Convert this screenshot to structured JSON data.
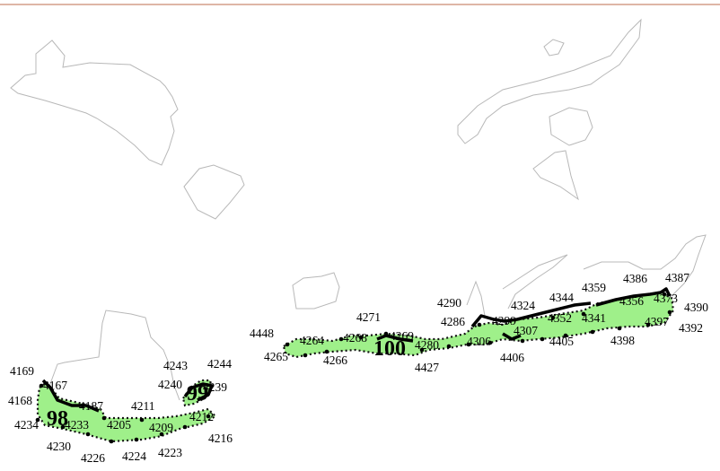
{
  "map": {
    "frame_line_color": "#c98a70",
    "fill_color": "#9ff08a",
    "areas": [
      {
        "id": "98",
        "label": "98"
      },
      {
        "id": "99",
        "label": "99"
      },
      {
        "id": "100",
        "label": "100"
      }
    ],
    "point_labels": [
      "4169",
      "4167",
      "4168",
      "4187",
      "4211",
      "4234",
      "4233",
      "4205",
      "4209",
      "4212",
      "4216",
      "4230",
      "4226",
      "4224",
      "4223",
      "4243",
      "4244",
      "4240",
      "4239",
      "4448",
      "4264",
      "4268",
      "4271",
      "4269",
      "4265",
      "4266",
      "4280",
      "4427",
      "4290",
      "4286",
      "4306",
      "4324",
      "4344",
      "4359",
      "4386",
      "4387",
      "4356",
      "4373",
      "4390",
      "4392",
      "4397",
      "4398",
      "4341",
      "4352",
      "4307",
      "4405",
      "4406",
      "4299"
    ]
  }
}
